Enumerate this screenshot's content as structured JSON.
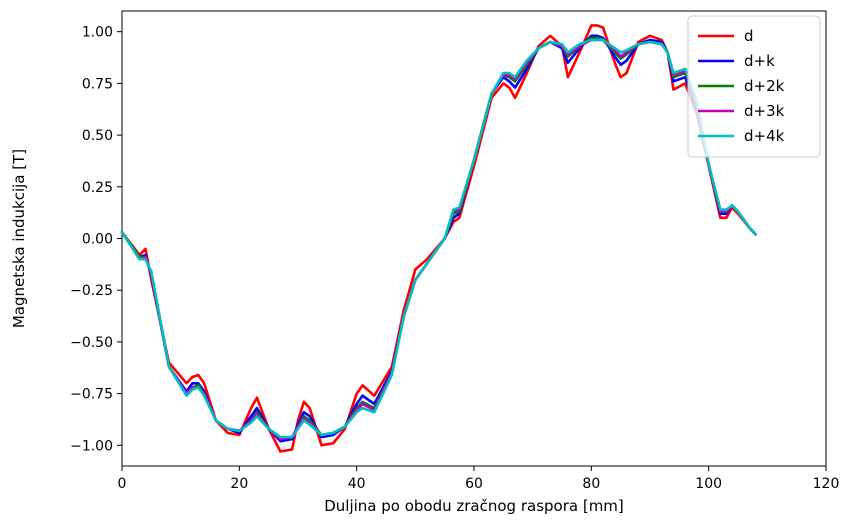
{
  "chart_data": {
    "type": "line",
    "xlabel": "Duljina po obodu zračnog raspora [mm]",
    "ylabel": "Magnetska indukcija [T]",
    "xlim": [
      0,
      120
    ],
    "ylim": [
      -1.1,
      1.1
    ],
    "xticks": [
      0,
      20,
      40,
      60,
      80,
      100,
      120
    ],
    "yticks": [
      -1.0,
      -0.75,
      -0.5,
      -0.25,
      0.0,
      0.25,
      0.5,
      0.75,
      1.0
    ],
    "xtick_labels": [
      "0",
      "20",
      "40",
      "60",
      "80",
      "100",
      "120"
    ],
    "ytick_labels": [
      "−1.00",
      "−0.75",
      "−0.50",
      "−0.25",
      "0.00",
      "0.25",
      "0.50",
      "0.75",
      "1.00"
    ],
    "grid": false,
    "legend_position": "top-right",
    "series": [
      {
        "name": "d",
        "color": "#ff0000",
        "x": [
          0,
          3,
          4,
          5,
          8,
          11,
          12,
          13,
          14,
          16,
          18,
          20,
          22,
          23,
          25,
          27,
          29,
          30,
          31,
          32,
          34,
          36,
          38,
          40,
          41,
          43,
          46,
          48,
          50,
          52,
          55,
          56.5,
          57.5,
          60,
          63,
          65,
          66,
          67,
          69,
          71,
          73,
          75,
          76,
          78,
          80,
          81,
          82,
          84,
          85,
          86,
          88,
          90,
          92,
          93,
          94,
          96,
          98,
          100,
          102,
          103,
          104,
          105,
          107,
          108
        ],
        "y": [
          0.03,
          -0.08,
          -0.05,
          -0.2,
          -0.6,
          -0.7,
          -0.67,
          -0.66,
          -0.7,
          -0.88,
          -0.94,
          -0.95,
          -0.82,
          -0.77,
          -0.92,
          -1.03,
          -1.02,
          -0.88,
          -0.79,
          -0.82,
          -1.0,
          -0.99,
          -0.92,
          -0.75,
          -0.71,
          -0.76,
          -0.62,
          -0.35,
          -0.15,
          -0.1,
          0.0,
          0.08,
          0.1,
          0.35,
          0.68,
          0.75,
          0.73,
          0.68,
          0.8,
          0.93,
          0.98,
          0.93,
          0.78,
          0.9,
          1.03,
          1.03,
          1.02,
          0.85,
          0.78,
          0.8,
          0.95,
          0.98,
          0.96,
          0.9,
          0.72,
          0.75,
          0.6,
          0.35,
          0.1,
          0.1,
          0.15,
          0.12,
          0.05,
          0.02
        ]
      },
      {
        "name": "d+k",
        "color": "#0000ff",
        "x": [
          0,
          3,
          4,
          5,
          8,
          11,
          12,
          13,
          14,
          16,
          18,
          20,
          22,
          23,
          25,
          27,
          29,
          30,
          31,
          32,
          34,
          36,
          38,
          40,
          41,
          43,
          46,
          48,
          50,
          52,
          55,
          56.5,
          57.5,
          60,
          63,
          65,
          66,
          67,
          69,
          71,
          73,
          75,
          76,
          78,
          80,
          81,
          82,
          84,
          85,
          86,
          88,
          90,
          92,
          93,
          94,
          96,
          98,
          100,
          102,
          103,
          104,
          105,
          107,
          108
        ],
        "y": [
          0.03,
          -0.09,
          -0.08,
          -0.18,
          -0.62,
          -0.74,
          -0.7,
          -0.7,
          -0.74,
          -0.88,
          -0.92,
          -0.94,
          -0.86,
          -0.82,
          -0.92,
          -0.98,
          -0.97,
          -0.9,
          -0.84,
          -0.86,
          -0.96,
          -0.95,
          -0.91,
          -0.8,
          -0.76,
          -0.8,
          -0.64,
          -0.38,
          -0.2,
          -0.12,
          0.0,
          0.1,
          0.12,
          0.38,
          0.7,
          0.78,
          0.76,
          0.73,
          0.82,
          0.92,
          0.95,
          0.92,
          0.85,
          0.92,
          0.98,
          0.98,
          0.97,
          0.88,
          0.84,
          0.86,
          0.94,
          0.96,
          0.95,
          0.9,
          0.76,
          0.78,
          0.62,
          0.36,
          0.12,
          0.12,
          0.16,
          0.13,
          0.05,
          0.02
        ]
      },
      {
        "name": "d+2k",
        "color": "#008000",
        "x": [
          0,
          3,
          4,
          5,
          8,
          11,
          12,
          13,
          14,
          16,
          18,
          20,
          22,
          23,
          25,
          27,
          29,
          30,
          31,
          32,
          34,
          36,
          38,
          40,
          41,
          43,
          46,
          48,
          50,
          52,
          55,
          56.5,
          57.5,
          60,
          63,
          65,
          66,
          67,
          69,
          71,
          73,
          75,
          76,
          78,
          80,
          81,
          82,
          84,
          85,
          86,
          88,
          90,
          92,
          93,
          94,
          96,
          98,
          100,
          102,
          103,
          104,
          105,
          107,
          108
        ],
        "y": [
          0.03,
          -0.09,
          -0.09,
          -0.17,
          -0.62,
          -0.75,
          -0.72,
          -0.71,
          -0.75,
          -0.88,
          -0.92,
          -0.93,
          -0.88,
          -0.84,
          -0.92,
          -0.97,
          -0.96,
          -0.91,
          -0.86,
          -0.88,
          -0.95,
          -0.94,
          -0.91,
          -0.82,
          -0.79,
          -0.82,
          -0.65,
          -0.38,
          -0.2,
          -0.12,
          0.0,
          0.12,
          0.13,
          0.38,
          0.7,
          0.79,
          0.78,
          0.76,
          0.84,
          0.92,
          0.95,
          0.93,
          0.88,
          0.93,
          0.97,
          0.97,
          0.96,
          0.9,
          0.87,
          0.89,
          0.94,
          0.95,
          0.94,
          0.9,
          0.78,
          0.8,
          0.64,
          0.36,
          0.13,
          0.13,
          0.16,
          0.13,
          0.05,
          0.02
        ]
      },
      {
        "name": "d+3k",
        "color": "#bf00bf",
        "x": [
          0,
          3,
          4,
          5,
          8,
          11,
          12,
          13,
          14,
          16,
          18,
          20,
          22,
          23,
          25,
          27,
          29,
          30,
          31,
          32,
          34,
          36,
          38,
          40,
          41,
          43,
          46,
          48,
          50,
          52,
          55,
          56.5,
          57.5,
          60,
          63,
          65,
          66,
          67,
          69,
          71,
          73,
          75,
          76,
          78,
          80,
          81,
          82,
          84,
          85,
          86,
          88,
          90,
          92,
          93,
          94,
          96,
          98,
          100,
          102,
          103,
          104,
          105,
          107,
          108
        ],
        "y": [
          0.03,
          -0.1,
          -0.09,
          -0.17,
          -0.62,
          -0.75,
          -0.72,
          -0.72,
          -0.75,
          -0.88,
          -0.92,
          -0.93,
          -0.88,
          -0.85,
          -0.92,
          -0.97,
          -0.96,
          -0.91,
          -0.87,
          -0.89,
          -0.95,
          -0.94,
          -0.91,
          -0.83,
          -0.8,
          -0.83,
          -0.65,
          -0.38,
          -0.2,
          -0.12,
          0.0,
          0.13,
          0.14,
          0.38,
          0.7,
          0.79,
          0.79,
          0.77,
          0.85,
          0.92,
          0.95,
          0.93,
          0.89,
          0.93,
          0.96,
          0.96,
          0.96,
          0.91,
          0.88,
          0.9,
          0.94,
          0.95,
          0.94,
          0.9,
          0.79,
          0.81,
          0.65,
          0.36,
          0.13,
          0.13,
          0.16,
          0.13,
          0.05,
          0.02
        ]
      },
      {
        "name": "d+4k",
        "color": "#00bfbf",
        "x": [
          0,
          3,
          4,
          5,
          8,
          11,
          12,
          13,
          14,
          16,
          18,
          20,
          22,
          23,
          25,
          27,
          29,
          30,
          31,
          32,
          34,
          36,
          38,
          40,
          41,
          43,
          46,
          48,
          50,
          52,
          55,
          56.5,
          57.5,
          60,
          63,
          65,
          66,
          67,
          69,
          71,
          73,
          75,
          76,
          78,
          80,
          81,
          82,
          84,
          85,
          86,
          88,
          90,
          92,
          93,
          94,
          96,
          98,
          100,
          102,
          103,
          104,
          105,
          107,
          108
        ],
        "y": [
          0.03,
          -0.1,
          -0.1,
          -0.16,
          -0.62,
          -0.76,
          -0.73,
          -0.72,
          -0.76,
          -0.88,
          -0.92,
          -0.93,
          -0.89,
          -0.86,
          -0.92,
          -0.96,
          -0.96,
          -0.92,
          -0.88,
          -0.9,
          -0.95,
          -0.94,
          -0.91,
          -0.84,
          -0.82,
          -0.84,
          -0.66,
          -0.38,
          -0.2,
          -0.12,
          0.0,
          0.14,
          0.15,
          0.38,
          0.7,
          0.8,
          0.8,
          0.78,
          0.86,
          0.92,
          0.95,
          0.94,
          0.9,
          0.94,
          0.96,
          0.96,
          0.96,
          0.92,
          0.9,
          0.91,
          0.94,
          0.95,
          0.94,
          0.9,
          0.8,
          0.82,
          0.66,
          0.36,
          0.14,
          0.14,
          0.16,
          0.13,
          0.05,
          0.02
        ]
      }
    ]
  }
}
